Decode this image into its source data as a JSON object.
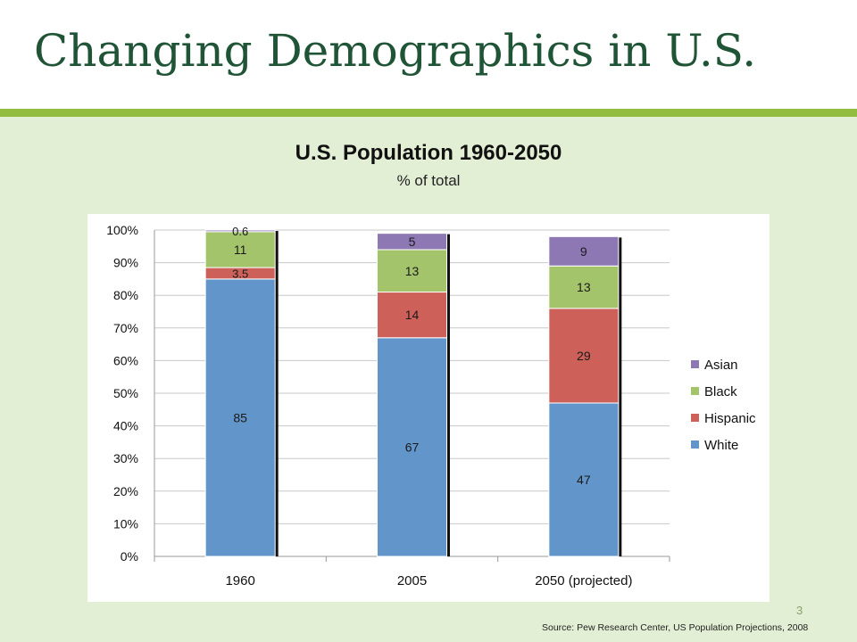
{
  "slide": {
    "title": "Changing Demographics in U.S.",
    "page_number": "3",
    "source": "Source: Pew Research Center, US Population Projections, 2008"
  },
  "colors": {
    "title": "#1f5436",
    "accent_bar": "#93bd3f",
    "background": "#e3efd4",
    "White": "#6296ca",
    "Hispanic": "#cd615a",
    "Black": "#a3c46a",
    "Asian": "#8e78b3"
  },
  "chart_data": {
    "type": "bar",
    "stacked": true,
    "title": "U.S. Population 1960-2050",
    "subtitle": "% of total",
    "categories": [
      "1960",
      "2005",
      "2050 (projected)"
    ],
    "series": [
      {
        "name": "White",
        "values": [
          85,
          67,
          47
        ],
        "labels": [
          "85",
          "67",
          "47"
        ]
      },
      {
        "name": "Hispanic",
        "values": [
          3.5,
          14,
          29
        ],
        "labels": [
          "3.5",
          "14",
          "29"
        ]
      },
      {
        "name": "Black",
        "values": [
          11,
          13,
          13
        ],
        "labels": [
          "11",
          "13",
          "13"
        ]
      },
      {
        "name": "Asian",
        "values": [
          0.6,
          5,
          9
        ],
        "labels": [
          "0.6",
          "5",
          "9"
        ]
      }
    ],
    "yticks": [
      "0%",
      "10%",
      "20%",
      "30%",
      "40%",
      "50%",
      "60%",
      "70%",
      "80%",
      "90%",
      "100%"
    ],
    "ylim": [
      0,
      100
    ],
    "grid": true,
    "legend_position": "right",
    "legend_order": [
      "Asian",
      "Black",
      "Hispanic",
      "White"
    ]
  }
}
